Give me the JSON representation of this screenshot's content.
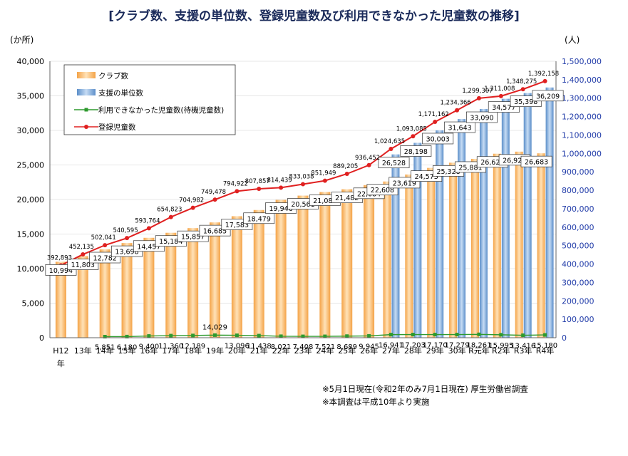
{
  "title": "[クラブ数、支援の単位数、登録児童数及び利用できなかった児童数の推移]",
  "notes": [
    "※5月1日現在(令和2年のみ7月1日現在) 厚生労働省調査",
    "※本調査は平成10年より実施"
  ],
  "colors": {
    "club": "#f4a347",
    "support": "#5b8ec9",
    "waiting": "#2e9a2e",
    "registered": "#e02020",
    "right_axis_text": "#1f3aa8"
  },
  "chart_data": {
    "type": "bar",
    "title": "[クラブ数、支援の単位数、登録児童数及び利用できなかった児童数の推移]",
    "categories": [
      "H12年",
      "13年",
      "14年",
      "15年",
      "16年",
      "17年",
      "18年",
      "19年",
      "20年",
      "21年",
      "22年",
      "23年",
      "24年",
      "25年",
      "26年",
      "27年",
      "28年",
      "29年",
      "30年",
      "R元年",
      "R2年",
      "R3年",
      "R4年"
    ],
    "left_axis": {
      "unit": "(か所)",
      "ylim": [
        0,
        40000
      ],
      "ticks": [
        "0",
        "5,000",
        "10,000",
        "15,000",
        "20,000",
        "25,000",
        "30,000",
        "35,000",
        "40,000"
      ]
    },
    "right_axis": {
      "unit": "(人)",
      "ylim": [
        0,
        1500000
      ],
      "ticks": [
        "0",
        "100,000",
        "200,000",
        "300,000",
        "400,000",
        "500,000",
        "600,000",
        "700,000",
        "800,000",
        "900,000",
        "1,000,000",
        "1,100,000",
        "1,200,000",
        "1,300,000",
        "1,400,000",
        "1,500,000"
      ]
    },
    "legend": {
      "placement": "top-left"
    },
    "series": [
      {
        "name": "クラブ数",
        "type": "bar",
        "axis": "left",
        "values": [
          10994,
          11803,
          12782,
          13698,
          14457,
          15184,
          15857,
          16685,
          17583,
          18479,
          19946,
          20561,
          21085,
          21482,
          22084,
          22608,
          23619,
          24573,
          25328,
          25881,
          26625,
          26925,
          26683
        ],
        "labels": [
          "10,994",
          "11,803",
          "12,782",
          "13,698",
          "14,457",
          "15,184",
          "15,857",
          "16,685",
          "17,583",
          "18,479",
          "19,946",
          "20,561",
          "21,085",
          "21,482",
          "22,084",
          "22,608",
          "23,619",
          "24,573",
          "25,328",
          "25,881",
          "26,625",
          "26,925",
          "26,683"
        ]
      },
      {
        "name": "支援の単位数",
        "type": "bar",
        "axis": "left",
        "values": [
          null,
          null,
          null,
          null,
          null,
          null,
          null,
          null,
          null,
          null,
          null,
          null,
          null,
          null,
          null,
          26528,
          28198,
          30003,
          31643,
          33090,
          34577,
          35398,
          36209
        ],
        "labels": [
          "",
          "",
          "",
          "",
          "",
          "",
          "",
          "",
          "",
          "",
          "",
          "",
          "",
          "",
          "",
          "26,528",
          "28,198",
          "30,003",
          "31,643",
          "33,090",
          "34,577",
          "35,398",
          "36,209"
        ]
      },
      {
        "name": "利用できなかった児童数(待機児童数)",
        "type": "line",
        "axis": "right",
        "values": [
          null,
          null,
          5851,
          6180,
          9400,
          11360,
          12189,
          14029,
          13096,
          11438,
          8021,
          7408,
          7521,
          8689,
          9945,
          16941,
          17203,
          17170,
          17279,
          18261,
          15995,
          13416,
          15180
        ],
        "labels": [
          "",
          "",
          "5,851",
          "6,180",
          "9,400",
          "11,360",
          "12,189",
          "14,029",
          "13,096",
          "11,438",
          "8,021",
          "7,408",
          "7,521",
          "8,689",
          "9,945",
          "16,941",
          "17,203",
          "17,170",
          "17,279",
          "18,261",
          "15,995",
          "13,416",
          "15,180"
        ]
      },
      {
        "name": "登録児童数",
        "type": "line",
        "axis": "right",
        "values": [
          392893,
          452135,
          502041,
          540595,
          593764,
          654823,
          704982,
          749478,
          794922,
          807857,
          814439,
          833038,
          851949,
          889205,
          936452,
          1024635,
          1093085,
          1171162,
          1234366,
          1299307,
          1311008,
          1348275,
          1392158
        ],
        "labels": [
          "392,893",
          "452,135",
          "502,041",
          "540,595",
          "593,764",
          "654,823",
          "704,982",
          "749,478",
          "794,922",
          "807,857",
          "814,439",
          "833,038",
          "851,949",
          "889,205",
          "936,452",
          "1,024,635",
          "1,093,085",
          "1,171,162",
          "1,234,366",
          "1,299,307",
          "1,311,008",
          "1,348,275",
          "1,392,158"
        ]
      }
    ]
  }
}
